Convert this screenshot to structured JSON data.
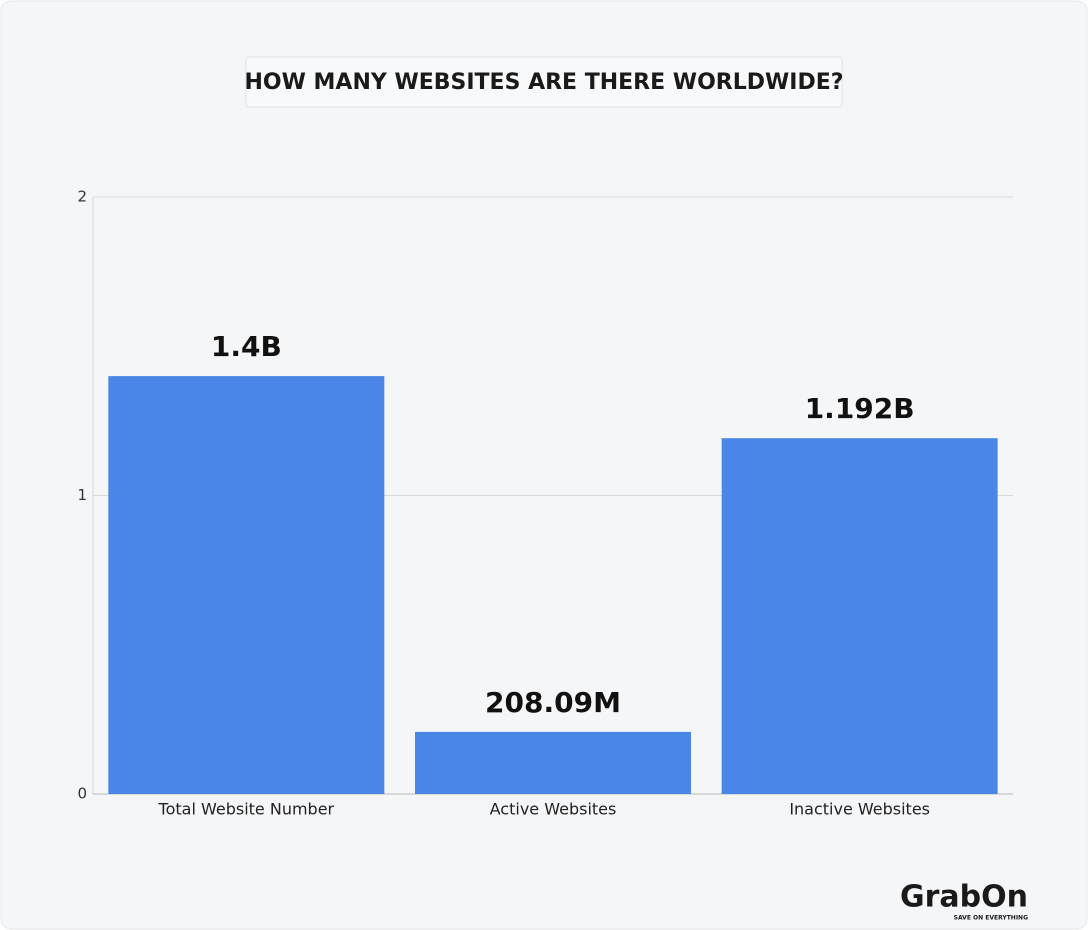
{
  "chart_data": {
    "type": "bar",
    "title": "HOW MANY WEBSITES ARE THERE WORLDWIDE?",
    "categories": [
      "Total Website Number",
      "Active Websites",
      "Inactive Websites"
    ],
    "values": [
      1.4,
      0.20809,
      1.192
    ],
    "value_labels": [
      "1.4B",
      "208.09M",
      "1.192B"
    ],
    "color": "#4a86e8",
    "ylim": [
      0,
      2
    ],
    "yticks": [
      0,
      1,
      2
    ],
    "grid": true
  },
  "logo": {
    "name": "GrabOn",
    "tagline": "SAVE ON EVERYTHING"
  }
}
